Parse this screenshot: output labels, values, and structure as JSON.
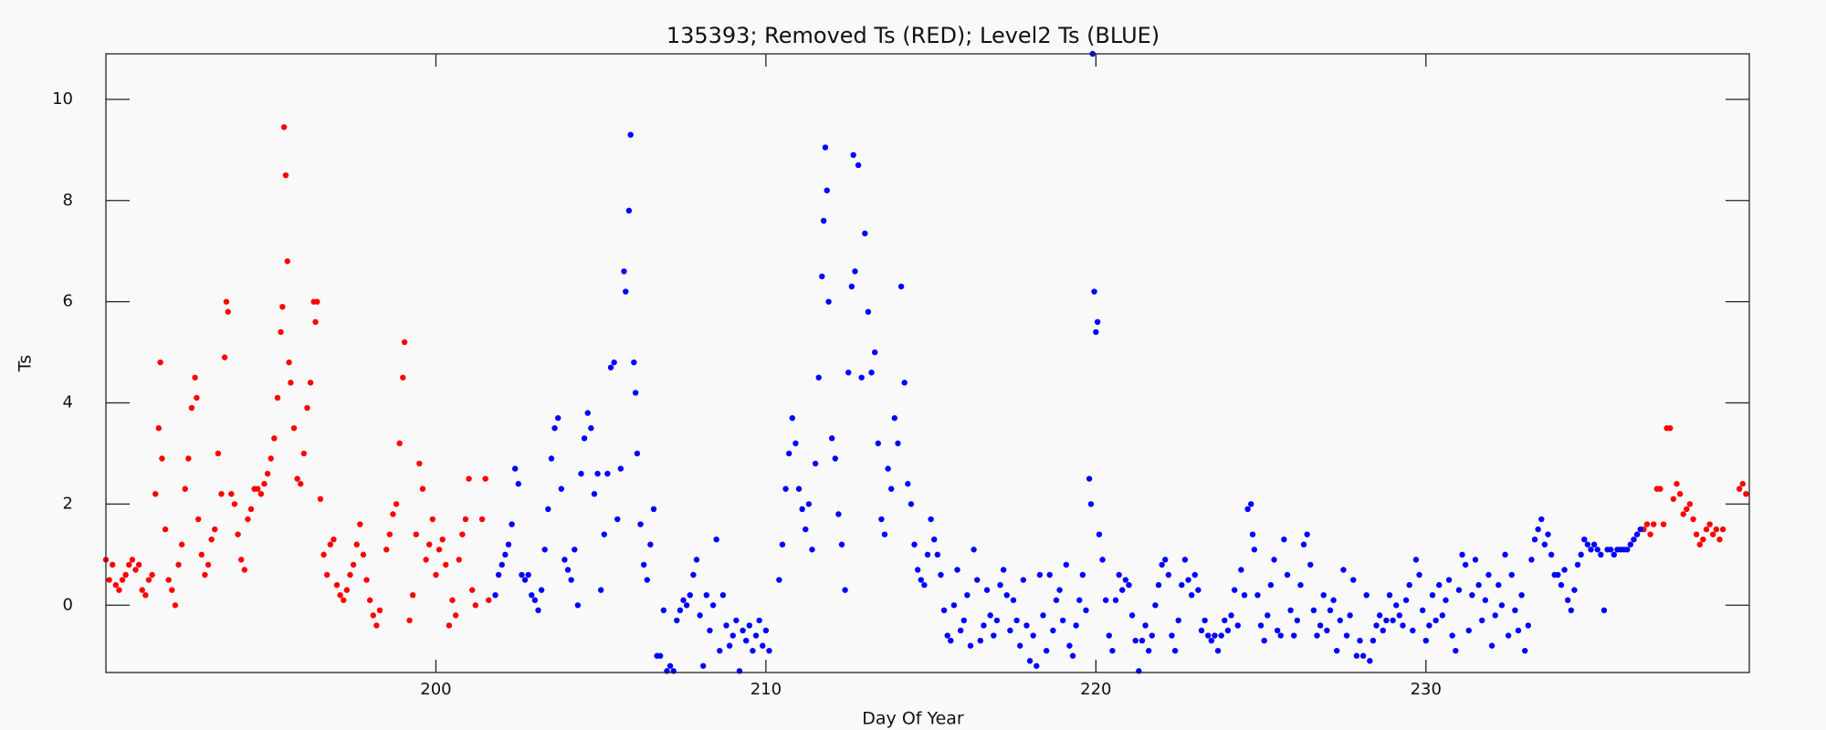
{
  "chart_data": {
    "type": "scatter",
    "title": "135393; Removed Ts (RED); Level2 Ts (BLUE)",
    "xlabel": "Day Of Year",
    "ylabel": "Ts",
    "xlim": [
      190,
      239.8
    ],
    "ylim": [
      -1.33,
      10.9
    ],
    "xticks": [
      200,
      210,
      220,
      230
    ],
    "yticks": [
      0,
      2,
      4,
      6,
      8,
      10
    ],
    "series": [
      {
        "color": "#ff0000",
        "x": [
          190.0,
          190.1,
          190.2,
          190.3,
          190.4,
          190.5,
          190.6,
          190.7,
          190.8,
          190.9,
          191.0,
          191.1,
          191.2,
          191.3,
          191.4,
          191.5,
          191.6,
          191.65,
          191.7,
          191.8,
          191.9,
          192.0,
          192.1,
          192.2,
          192.3,
          192.4,
          192.5,
          192.6,
          192.7,
          192.75,
          192.8,
          192.9,
          193.0,
          193.1,
          193.2,
          193.3,
          193.4,
          193.5,
          193.6,
          193.65,
          193.7,
          193.8,
          193.9,
          194.0,
          194.1,
          194.2,
          194.3,
          194.4,
          194.5,
          194.6,
          194.7,
          194.8,
          194.9,
          195.0,
          195.1,
          195.2,
          195.3,
          195.35,
          195.4,
          195.45,
          195.5,
          195.55,
          195.6,
          195.7,
          195.8,
          195.9,
          196.0,
          196.1,
          196.2,
          196.3,
          196.35,
          196.4,
          196.5,
          196.6,
          196.7,
          196.8,
          196.9,
          197.0,
          197.1,
          197.2,
          197.3,
          197.4,
          197.5,
          197.6,
          197.7,
          197.8,
          197.9,
          198.0,
          198.1,
          198.2,
          198.3,
          198.5,
          198.6,
          198.7,
          198.8,
          198.9,
          199.0,
          199.05,
          199.2,
          199.3,
          199.4,
          199.5,
          199.6,
          199.7,
          199.8,
          199.9,
          200.0,
          200.1,
          200.2,
          200.3,
          200.4,
          200.5,
          200.6,
          200.7,
          200.8,
          200.9,
          201.0,
          201.1,
          201.2,
          201.4,
          201.5,
          201.6,
          236.6,
          236.7,
          236.8,
          236.9,
          237.0,
          237.1,
          237.2,
          237.3,
          237.4,
          237.5,
          237.6,
          237.7,
          237.8,
          237.9,
          238.0,
          238.1,
          238.2,
          238.3,
          238.4,
          238.5,
          238.6,
          238.7,
          238.8,
          238.9,
          239.0,
          239.5,
          239.6,
          239.7
        ],
        "values": [
          0.9,
          0.5,
          0.8,
          0.4,
          0.3,
          0.5,
          0.6,
          0.8,
          0.9,
          0.7,
          0.8,
          0.3,
          0.2,
          0.5,
          0.6,
          2.2,
          3.5,
          4.8,
          2.9,
          1.5,
          0.5,
          0.3,
          0.0,
          0.8,
          1.2,
          2.3,
          2.9,
          3.9,
          4.5,
          4.1,
          1.7,
          1.0,
          0.6,
          0.8,
          1.3,
          1.5,
          3.0,
          2.2,
          4.9,
          6.0,
          5.8,
          2.2,
          2.0,
          1.4,
          0.9,
          0.7,
          1.7,
          1.9,
          2.3,
          2.3,
          2.2,
          2.4,
          2.6,
          2.9,
          3.3,
          4.1,
          5.4,
          5.9,
          9.45,
          8.5,
          6.8,
          4.8,
          4.4,
          3.5,
          2.5,
          2.4,
          3.0,
          3.9,
          4.4,
          6.0,
          5.6,
          6.0,
          2.1,
          1.0,
          0.6,
          1.2,
          1.3,
          0.4,
          0.2,
          0.1,
          0.3,
          0.6,
          0.8,
          1.2,
          1.6,
          1.0,
          0.5,
          0.1,
          -0.2,
          -0.4,
          -0.1,
          1.1,
          1.4,
          1.8,
          2.0,
          3.2,
          4.5,
          5.2,
          -0.3,
          0.2,
          1.4,
          2.8,
          2.3,
          0.9,
          1.2,
          1.7,
          0.6,
          1.1,
          1.3,
          0.8,
          -0.4,
          0.1,
          -0.2,
          0.9,
          1.4,
          1.7,
          2.5,
          0.3,
          0.0,
          1.7,
          2.5,
          0.1,
          1.5,
          1.6,
          1.4,
          1.6,
          2.3,
          2.3,
          1.6,
          3.5,
          3.5,
          2.1,
          2.4,
          2.2,
          1.8,
          1.9,
          2.0,
          1.7,
          1.4,
          1.2,
          1.3,
          1.5,
          1.6,
          1.4,
          1.5,
          1.3,
          1.5,
          2.3,
          2.4,
          2.2
        ]
      },
      {
        "color": "#0000ff",
        "x": [
          201.8,
          201.9,
          202.0,
          202.1,
          202.2,
          202.3,
          202.4,
          202.5,
          202.6,
          202.7,
          202.8,
          202.9,
          203.0,
          203.1,
          203.2,
          203.3,
          203.4,
          203.5,
          203.6,
          203.7,
          203.8,
          203.9,
          204.0,
          204.1,
          204.2,
          204.3,
          204.4,
          204.5,
          204.6,
          204.7,
          204.8,
          204.9,
          205.0,
          205.1,
          205.2,
          205.3,
          205.4,
          205.5,
          205.6,
          205.7,
          205.75,
          205.85,
          205.9,
          206.0,
          206.05,
          206.1,
          206.2,
          206.3,
          206.4,
          206.5,
          206.6,
          206.7,
          206.8,
          206.9,
          207.0,
          207.1,
          207.2,
          207.3,
          207.4,
          207.5,
          207.6,
          207.7,
          207.8,
          207.9,
          208.0,
          208.1,
          208.2,
          208.3,
          208.4,
          208.5,
          208.6,
          208.7,
          208.8,
          208.9,
          209.0,
          209.1,
          209.2,
          209.3,
          209.4,
          209.5,
          209.6,
          209.7,
          209.8,
          209.9,
          210.0,
          210.1,
          210.4,
          210.5,
          210.6,
          210.7,
          210.8,
          210.9,
          211.0,
          211.1,
          211.2,
          211.3,
          211.4,
          211.5,
          211.6,
          211.7,
          211.75,
          211.8,
          211.85,
          211.9,
          212.0,
          212.1,
          212.2,
          212.3,
          212.4,
          212.5,
          212.6,
          212.65,
          212.7,
          212.8,
          212.9,
          213.0,
          213.1,
          213.2,
          213.3,
          213.4,
          213.5,
          213.6,
          213.7,
          213.8,
          213.9,
          214.0,
          214.1,
          214.2,
          214.3,
          214.4,
          214.5,
          214.6,
          214.7,
          214.8,
          214.9,
          215.0,
          215.1,
          215.2,
          215.3,
          215.4,
          215.5,
          215.6,
          215.7,
          215.8,
          215.9,
          216.0,
          216.1,
          216.2,
          216.3,
          216.4,
          216.5,
          216.6,
          216.7,
          216.8,
          216.9,
          217.0,
          217.1,
          217.2,
          217.3,
          217.4,
          217.5,
          217.6,
          217.7,
          217.8,
          217.9,
          218.0,
          218.1,
          218.2,
          218.3,
          218.4,
          218.5,
          218.6,
          218.7,
          218.8,
          218.9,
          219.0,
          219.1,
          219.2,
          219.3,
          219.4,
          219.5,
          219.6,
          219.7,
          219.8,
          219.85,
          219.9,
          219.95,
          220.0,
          220.05,
          220.1,
          220.2,
          220.3,
          220.4,
          220.5,
          220.6,
          220.7,
          220.8,
          220.9,
          221.0,
          221.1,
          221.2,
          221.3,
          221.4,
          221.5,
          221.6,
          221.7,
          221.8,
          221.9,
          222.0,
          222.1,
          222.2,
          222.3,
          222.4,
          222.5,
          222.6,
          222.7,
          222.8,
          222.9,
          223.0,
          223.1,
          223.2,
          223.3,
          223.4,
          223.5,
          223.6,
          223.7,
          223.8,
          223.9,
          224.0,
          224.1,
          224.2,
          224.3,
          224.4,
          224.5,
          224.6,
          224.7,
          224.75,
          224.8,
          224.9,
          225.0,
          225.1,
          225.2,
          225.3,
          225.4,
          225.5,
          225.6,
          225.7,
          225.8,
          225.9,
          226.0,
          226.1,
          226.2,
          226.3,
          226.4,
          226.5,
          226.6,
          226.7,
          226.8,
          226.9,
          227.0,
          227.1,
          227.2,
          227.3,
          227.4,
          227.5,
          227.6,
          227.7,
          227.8,
          227.9,
          228.0,
          228.1,
          228.2,
          228.3,
          228.4,
          228.5,
          228.6,
          228.7,
          228.8,
          228.9,
          229.0,
          229.1,
          229.2,
          229.3,
          229.4,
          229.5,
          229.6,
          229.7,
          229.8,
          229.9,
          230.0,
          230.1,
          230.2,
          230.3,
          230.4,
          230.5,
          230.6,
          230.7,
          230.8,
          230.9,
          231.0,
          231.1,
          231.2,
          231.3,
          231.4,
          231.5,
          231.6,
          231.7,
          231.8,
          231.9,
          232.0,
          232.1,
          232.2,
          232.3,
          232.4,
          232.5,
          232.6,
          232.7,
          232.8,
          232.9,
          233.0,
          233.1,
          233.2,
          233.3,
          233.4,
          233.5,
          233.6,
          233.7,
          233.8,
          233.9,
          234.0,
          234.1,
          234.2,
          234.3,
          234.4,
          234.5,
          234.6,
          234.7,
          234.8,
          234.9,
          235.0,
          235.1,
          235.2,
          235.3,
          235.4,
          235.5,
          235.6,
          235.7,
          235.8,
          235.9,
          236.0,
          236.1,
          236.2,
          236.3,
          236.4,
          236.5
        ],
        "values": [
          0.2,
          0.6,
          0.8,
          1.0,
          1.2,
          1.6,
          2.7,
          2.4,
          0.6,
          0.5,
          0.6,
          0.2,
          0.1,
          -0.1,
          0.3,
          1.1,
          1.9,
          2.9,
          3.5,
          3.7,
          2.3,
          0.9,
          0.7,
          0.5,
          1.1,
          0.0,
          2.6,
          3.3,
          3.8,
          3.5,
          2.2,
          2.6,
          0.3,
          1.4,
          2.6,
          4.7,
          4.8,
          1.7,
          2.7,
          6.6,
          6.2,
          7.8,
          9.3,
          4.8,
          4.2,
          3.0,
          1.6,
          0.8,
          0.5,
          1.2,
          1.9,
          -1.0,
          -1.0,
          -0.1,
          -1.3,
          -1.2,
          -1.3,
          -0.3,
          -0.1,
          0.1,
          0.0,
          0.2,
          0.6,
          0.9,
          -0.2,
          -1.2,
          0.2,
          -0.5,
          0.0,
          1.3,
          -0.9,
          0.2,
          -0.4,
          -0.8,
          -0.6,
          -0.3,
          -1.3,
          -0.5,
          -0.7,
          -0.4,
          -0.9,
          -0.6,
          -0.3,
          -0.8,
          -0.5,
          -0.9,
          0.5,
          1.2,
          2.3,
          3.0,
          3.7,
          3.2,
          2.3,
          1.9,
          1.5,
          2.0,
          1.1,
          2.8,
          4.5,
          6.5,
          7.6,
          9.05,
          8.2,
          6.0,
          3.3,
          2.9,
          1.8,
          1.2,
          0.3,
          4.6,
          6.3,
          8.9,
          6.6,
          8.7,
          4.5,
          7.35,
          5.8,
          4.6,
          5.0,
          3.2,
          1.7,
          1.4,
          2.7,
          2.3,
          3.7,
          3.2,
          6.3,
          4.4,
          2.4,
          2.0,
          1.2,
          0.7,
          0.5,
          0.4,
          1.0,
          1.7,
          1.3,
          1.0,
          0.6,
          -0.1,
          -0.6,
          -0.7,
          0.0,
          0.7,
          -0.5,
          -0.3,
          0.2,
          -0.8,
          1.1,
          0.5,
          -0.7,
          -0.4,
          0.3,
          -0.2,
          -0.6,
          -0.3,
          0.4,
          0.7,
          0.2,
          -0.5,
          0.1,
          -0.3,
          -0.8,
          0.5,
          -0.4,
          -1.1,
          -0.6,
          -1.2,
          0.6,
          -0.2,
          -0.9,
          0.6,
          -0.5,
          0.1,
          0.3,
          -0.3,
          0.8,
          -0.8,
          -1.0,
          -0.4,
          0.1,
          0.6,
          -0.1,
          2.5,
          2.0,
          10.9,
          6.2,
          5.4,
          5.6,
          1.4,
          0.9,
          0.1,
          -0.6,
          -0.9,
          0.1,
          0.6,
          0.3,
          0.5,
          0.4,
          -0.2,
          -0.7,
          -1.3,
          -0.7,
          -0.4,
          -0.9,
          -0.6,
          0.0,
          0.4,
          0.8,
          0.9,
          0.6,
          -0.6,
          -0.9,
          -0.3,
          0.4,
          0.9,
          0.5,
          0.2,
          0.6,
          0.3,
          -0.5,
          -0.3,
          -0.6,
          -0.7,
          -0.6,
          -0.9,
          -0.6,
          -0.3,
          -0.5,
          -0.2,
          0.3,
          -0.4,
          0.7,
          0.2,
          1.9,
          2.0,
          1.4,
          1.1,
          0.2,
          -0.4,
          -0.7,
          -0.2,
          0.4,
          0.9,
          -0.5,
          -0.6,
          1.3,
          0.6,
          -0.1,
          -0.6,
          -0.3,
          0.4,
          1.2,
          1.4,
          0.8,
          -0.1,
          -0.6,
          -0.4,
          0.2,
          -0.5,
          -0.1,
          0.1,
          -0.9,
          -0.3,
          0.7,
          -0.6,
          -0.2,
          0.5,
          -1.0,
          -0.7,
          -1.0,
          0.2,
          -1.1,
          -0.7,
          -0.4,
          -0.2,
          -0.5,
          -0.3,
          0.2,
          -0.3,
          0.0,
          -0.2,
          -0.4,
          0.1,
          0.4,
          -0.5,
          0.9,
          0.6,
          -0.1,
          -0.7,
          -0.4,
          0.2,
          -0.3,
          0.4,
          -0.2,
          0.1,
          0.5,
          -0.6,
          -0.9,
          0.3,
          1.0,
          0.8,
          -0.5,
          0.2,
          0.9,
          0.4,
          -0.3,
          0.1,
          0.6,
          -0.8,
          -0.2,
          0.4,
          0.0,
          1.0,
          -0.6,
          0.6,
          -0.1,
          -0.5,
          0.2,
          -0.9,
          -0.4,
          0.9,
          1.3,
          1.5,
          1.7,
          1.2,
          1.4,
          1.0,
          0.6,
          0.6,
          0.4,
          0.7,
          0.1,
          -0.1,
          0.3,
          0.8,
          1.0,
          1.3,
          1.2,
          1.1,
          1.2,
          1.1,
          1.0,
          -0.1,
          1.1,
          1.1,
          1.0,
          1.1,
          1.1,
          1.1,
          1.1,
          1.2,
          1.3,
          1.4,
          1.5
        ]
      }
    ]
  }
}
